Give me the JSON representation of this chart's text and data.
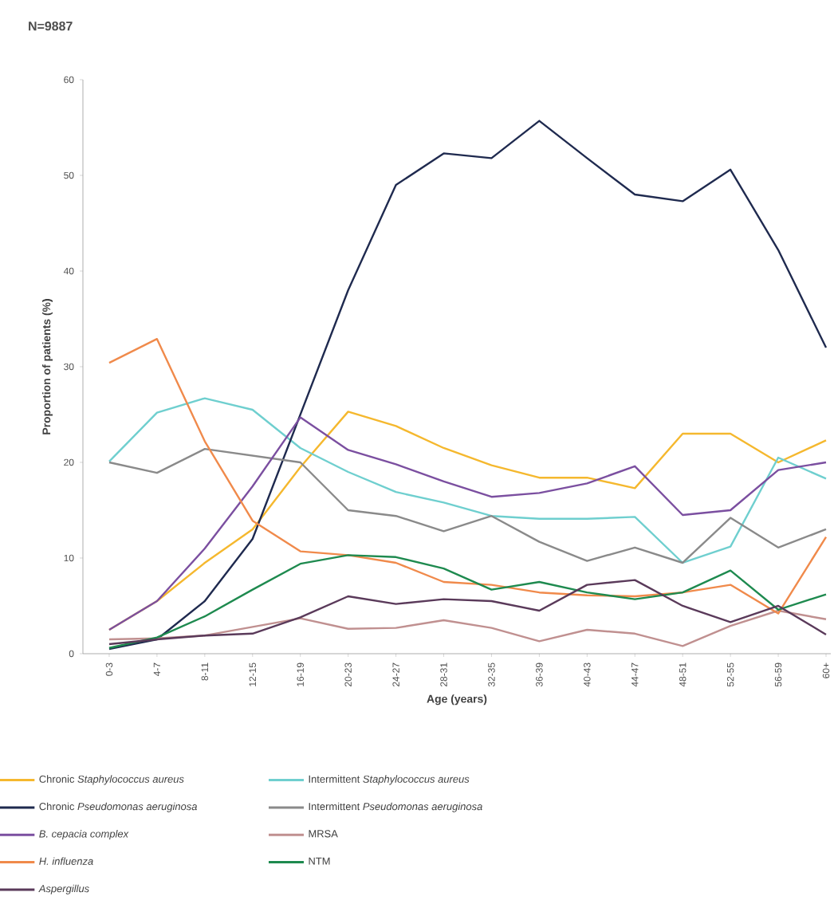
{
  "chart_data": {
    "type": "line",
    "title": "N=9887",
    "xlabel": "Age (years)",
    "ylabel": "Proportion of patients (%)",
    "categories": [
      "0-3",
      "4-7",
      "8-11",
      "12-15",
      "16-19",
      "20-23",
      "24-27",
      "28-31",
      "32-35",
      "36-39",
      "40-43",
      "44-47",
      "48-51",
      "52-55",
      "56-59",
      "60+"
    ],
    "ylim": [
      0,
      60
    ],
    "yticks": [
      0,
      10,
      20,
      30,
      40,
      50,
      60
    ],
    "legend": "bottom",
    "line_style": "solid",
    "series": [
      {
        "name": "Chronic *Staphylococcus aureus*",
        "color": "#f5b82e",
        "values": [
          2.5,
          5.5,
          9.5,
          13,
          19.5,
          25.3,
          23.8,
          21.5,
          19.7,
          18.4,
          18.4,
          17.3,
          23,
          23,
          20,
          22.3
        ]
      },
      {
        "name": "Intermittent *Staphylococcus aureus*",
        "color": "#6fcfcf",
        "values": [
          20.1,
          25.2,
          26.7,
          25.5,
          21.5,
          19,
          16.9,
          15.8,
          14.4,
          14.1,
          14.1,
          14.3,
          9.5,
          11.2,
          20.5,
          18.3
        ]
      },
      {
        "name": "Chronic *Pseudomonas aeruginosa*",
        "color": "#1f2a4f",
        "values": [
          0.5,
          1.5,
          5.5,
          12,
          25,
          38,
          49,
          52.3,
          51.8,
          55.7,
          51.8,
          48,
          47.3,
          50.6,
          42.2,
          32
        ]
      },
      {
        "name": "Intermittent *Pseudomonas aeruginosa*",
        "color": "#8a8a8a",
        "values": [
          20,
          18.9,
          21.4,
          20.7,
          20,
          15,
          14.4,
          12.8,
          14.4,
          11.7,
          9.7,
          11.1,
          9.5,
          14.2,
          11.1,
          13
        ]
      },
      {
        "name": "*B. cepacia complex*",
        "color": "#7b4fa0",
        "values": [
          2.5,
          5.5,
          11,
          17.5,
          24.7,
          21.3,
          19.8,
          18,
          16.4,
          16.8,
          17.8,
          19.6,
          14.5,
          15,
          19.2,
          20
        ]
      },
      {
        "name": "MRSA",
        "color": "#c09090",
        "values": [
          1.5,
          1.6,
          1.9,
          2.8,
          3.7,
          2.6,
          2.7,
          3.5,
          2.7,
          1.3,
          2.5,
          2.1,
          0.8,
          2.9,
          4.5,
          3.6
        ]
      },
      {
        "name": "*H. influenza*",
        "color": "#f08a4b",
        "values": [
          30.4,
          32.9,
          22.2,
          13.9,
          10.7,
          10.3,
          9.5,
          7.5,
          7.2,
          6.4,
          6.1,
          6,
          6.4,
          7.2,
          4.2,
          12.2
        ]
      },
      {
        "name": "NTM",
        "color": "#1e8a4f",
        "values": [
          0.6,
          1.7,
          3.9,
          6.7,
          9.4,
          10.3,
          10.1,
          8.9,
          6.7,
          7.5,
          6.4,
          5.7,
          6.4,
          8.7,
          4.6,
          6.2
        ]
      },
      {
        "name": "*Aspergillus*",
        "color": "#5a3a5a",
        "values": [
          1.0,
          1.5,
          1.9,
          2.1,
          3.8,
          6.0,
          5.2,
          5.7,
          5.5,
          4.5,
          7.2,
          7.7,
          5.0,
          3.3,
          5.0,
          2.0
        ]
      }
    ]
  }
}
